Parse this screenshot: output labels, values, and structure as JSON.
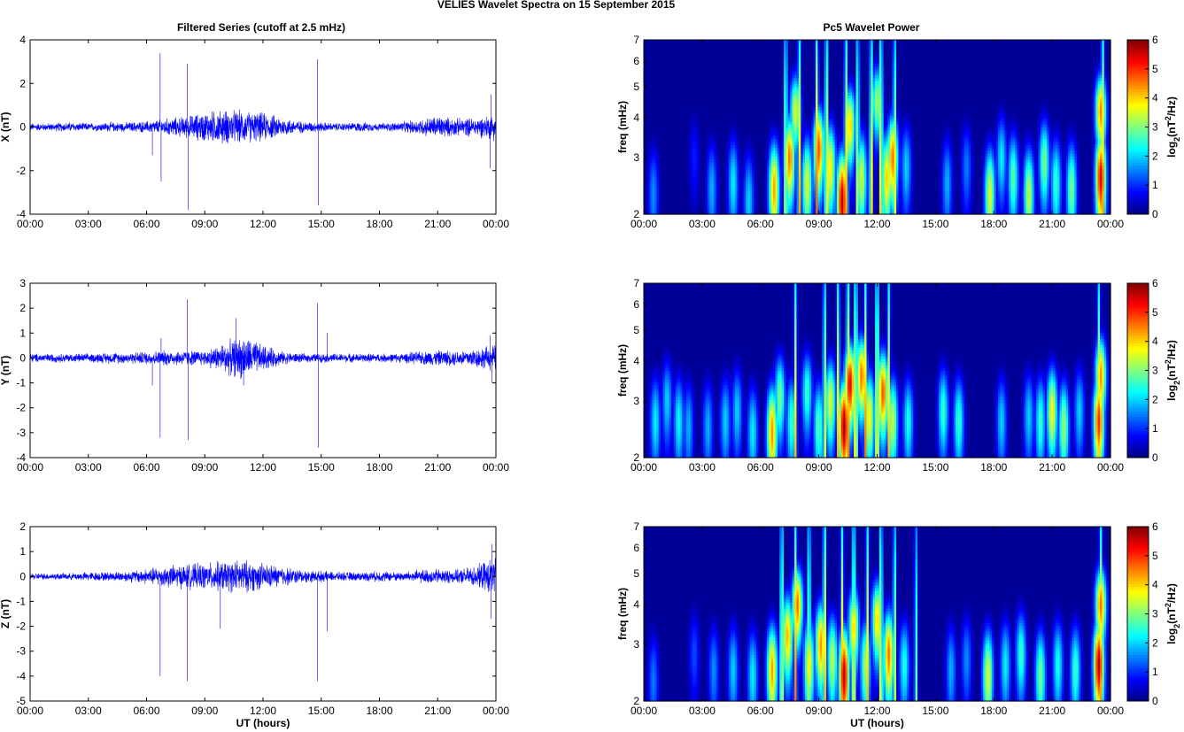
{
  "figure": {
    "title": "VELIES Wavelet Spectra on 15 September 2015",
    "left_title": "Filtered Series (cutoff at 2.5 mHz)",
    "right_title": "Pc5 Wavelet Power"
  },
  "chart_data": [
    {
      "type": "line",
      "name": "x-filtered-series",
      "xlabel": "",
      "ylabel": "X (nT)",
      "xlim": [
        0,
        24
      ],
      "ylim": [
        -4,
        4
      ],
      "xticks": [
        "00:00",
        "03:00",
        "06:00",
        "09:00",
        "12:00",
        "15:00",
        "18:00",
        "21:00",
        "00:00"
      ],
      "yticks": [
        -4,
        -2,
        0,
        2,
        4
      ],
      "color": "#0000ff",
      "grid": false,
      "spikes": [
        [
          6.7,
          3.4
        ],
        [
          6.75,
          -2.5
        ],
        [
          8.1,
          2.9
        ],
        [
          8.15,
          -3.8
        ],
        [
          14.8,
          3.1
        ],
        [
          14.85,
          -3.6
        ],
        [
          23.7,
          -1.9
        ],
        [
          23.75,
          1.5
        ],
        [
          6.3,
          -1.3
        ]
      ],
      "envelope": [
        [
          0,
          0.2
        ],
        [
          1,
          0.2
        ],
        [
          2,
          0.25
        ],
        [
          3,
          0.2
        ],
        [
          4,
          0.25
        ],
        [
          5,
          0.25
        ],
        [
          6,
          0.3
        ],
        [
          7,
          0.45
        ],
        [
          8,
          0.55
        ],
        [
          9,
          0.8
        ],
        [
          10,
          0.9
        ],
        [
          11,
          0.85
        ],
        [
          12,
          0.75
        ],
        [
          13,
          0.5
        ],
        [
          14,
          0.3
        ],
        [
          15,
          0.25
        ],
        [
          16,
          0.2
        ],
        [
          17,
          0.25
        ],
        [
          18,
          0.2
        ],
        [
          19,
          0.25
        ],
        [
          20,
          0.4
        ],
        [
          21,
          0.6
        ],
        [
          22,
          0.45
        ],
        [
          23,
          0.5
        ],
        [
          24,
          0.7
        ]
      ]
    },
    {
      "type": "line",
      "name": "y-filtered-series",
      "xlabel": "",
      "ylabel": "Y (nT)",
      "xlim": [
        0,
        24
      ],
      "ylim": [
        -4,
        3
      ],
      "xticks": [
        "00:00",
        "03:00",
        "06:00",
        "09:00",
        "12:00",
        "15:00",
        "18:00",
        "21:00",
        "00:00"
      ],
      "yticks": [
        -4,
        -3,
        -2,
        -1,
        0,
        1,
        2,
        3
      ],
      "color": "#0000ff",
      "grid": false,
      "spikes": [
        [
          6.7,
          -3.2
        ],
        [
          6.75,
          0.8
        ],
        [
          8.1,
          2.35
        ],
        [
          8.15,
          -3.3
        ],
        [
          10.6,
          1.6
        ],
        [
          11.0,
          -1.1
        ],
        [
          14.8,
          2.2
        ],
        [
          14.85,
          -3.6
        ],
        [
          15.3,
          1.0
        ],
        [
          23.8,
          -1.0
        ],
        [
          23.7,
          0.9
        ],
        [
          6.3,
          -1.1
        ]
      ],
      "envelope": [
        [
          0,
          0.2
        ],
        [
          1,
          0.2
        ],
        [
          2,
          0.2
        ],
        [
          3,
          0.2
        ],
        [
          4,
          0.25
        ],
        [
          5,
          0.25
        ],
        [
          6,
          0.3
        ],
        [
          7,
          0.35
        ],
        [
          8,
          0.35
        ],
        [
          9,
          0.35
        ],
        [
          10,
          0.7
        ],
        [
          11,
          1.0
        ],
        [
          12,
          0.6
        ],
        [
          13,
          0.3
        ],
        [
          14,
          0.2
        ],
        [
          15,
          0.2
        ],
        [
          16,
          0.2
        ],
        [
          17,
          0.2
        ],
        [
          18,
          0.2
        ],
        [
          19,
          0.2
        ],
        [
          20,
          0.3
        ],
        [
          21,
          0.35
        ],
        [
          22,
          0.35
        ],
        [
          23,
          0.45
        ],
        [
          24,
          0.6
        ]
      ]
    },
    {
      "type": "line",
      "name": "z-filtered-series",
      "xlabel": "UT (hours)",
      "ylabel": "Z (nT)",
      "xlim": [
        0,
        24
      ],
      "ylim": [
        -5,
        2
      ],
      "xticks": [
        "00:00",
        "03:00",
        "06:00",
        "09:00",
        "12:00",
        "15:00",
        "18:00",
        "21:00",
        "00:00"
      ],
      "yticks": [
        -5,
        -4,
        -3,
        -2,
        -1,
        0,
        1,
        2
      ],
      "color": "#0000ff",
      "grid": false,
      "spikes": [
        [
          6.7,
          -4.0
        ],
        [
          8.1,
          -4.2
        ],
        [
          9.8,
          -2.1
        ],
        [
          14.8,
          -4.2
        ],
        [
          15.3,
          -2.2
        ],
        [
          23.8,
          1.3
        ],
        [
          23.75,
          -1.7
        ]
      ],
      "envelope": [
        [
          0,
          0.15
        ],
        [
          1,
          0.15
        ],
        [
          2,
          0.15
        ],
        [
          3,
          0.2
        ],
        [
          4,
          0.2
        ],
        [
          5,
          0.25
        ],
        [
          6,
          0.35
        ],
        [
          7,
          0.5
        ],
        [
          8,
          0.55
        ],
        [
          9,
          0.6
        ],
        [
          10,
          0.7
        ],
        [
          11,
          0.75
        ],
        [
          12,
          0.6
        ],
        [
          13,
          0.45
        ],
        [
          14,
          0.3
        ],
        [
          15,
          0.25
        ],
        [
          16,
          0.2
        ],
        [
          17,
          0.2
        ],
        [
          18,
          0.25
        ],
        [
          19,
          0.2
        ],
        [
          20,
          0.3
        ],
        [
          21,
          0.35
        ],
        [
          22,
          0.3
        ],
        [
          23,
          0.5
        ],
        [
          24,
          0.9
        ]
      ]
    },
    {
      "type": "heatmap",
      "name": "x-wavelet-power",
      "xlabel": "",
      "ylabel": "freq (mHz)",
      "xlim": [
        0,
        24
      ],
      "ylim": [
        2,
        7
      ],
      "yscale": "log",
      "xticks": [
        "00:00",
        "03:00",
        "06:00",
        "09:00",
        "12:00",
        "15:00",
        "18:00",
        "21:00",
        "00:00"
      ],
      "yticks": [
        2,
        3,
        4,
        5,
        6,
        7
      ],
      "colorbar_label": "log2(nT2/Hz)",
      "colorbar_ticks": [
        0,
        1,
        2,
        3,
        4,
        5,
        6
      ],
      "clim": [
        0,
        6
      ],
      "colormap": "jet",
      "peaks": [
        [
          0.5,
          2.3,
          1.6
        ],
        [
          2.6,
          3.0,
          0.9
        ],
        [
          3.5,
          2.4,
          1.8
        ],
        [
          4.6,
          2.5,
          2.2
        ],
        [
          5.4,
          2.2,
          2.0
        ],
        [
          6.7,
          2.4,
          4.3
        ],
        [
          7.5,
          3.0,
          4.6
        ],
        [
          7.8,
          4.2,
          3.6
        ],
        [
          8.4,
          2.5,
          3.6
        ],
        [
          9.0,
          3.2,
          4.8
        ],
        [
          9.6,
          2.8,
          3.8
        ],
        [
          10.2,
          2.2,
          5.6
        ],
        [
          10.6,
          3.8,
          4.0
        ],
        [
          11.2,
          2.6,
          3.5
        ],
        [
          12.0,
          4.5,
          3.2
        ],
        [
          12.5,
          2.6,
          4.0
        ],
        [
          12.8,
          3.0,
          4.6
        ],
        [
          13.5,
          2.8,
          2.0
        ],
        [
          15.6,
          2.5,
          1.8
        ],
        [
          16.6,
          2.8,
          1.5
        ],
        [
          17.8,
          2.3,
          3.6
        ],
        [
          18.4,
          3.0,
          2.2
        ],
        [
          19.0,
          2.6,
          2.8
        ],
        [
          19.8,
          2.3,
          3.4
        ],
        [
          20.6,
          2.9,
          3.0
        ],
        [
          21.2,
          2.5,
          2.6
        ],
        [
          22.0,
          2.4,
          3.0
        ],
        [
          23.5,
          2.6,
          5.4
        ],
        [
          23.5,
          4.2,
          4.5
        ]
      ],
      "streaks": [
        [
          7.3,
          4.0
        ],
        [
          8.0,
          4.5
        ],
        [
          8.9,
          4.8
        ],
        [
          9.4,
          4.6
        ],
        [
          10.4,
          4.5
        ],
        [
          11.0,
          4.0
        ],
        [
          11.7,
          4.4
        ],
        [
          12.2,
          4.7
        ],
        [
          12.9,
          4.0
        ],
        [
          23.6,
          4.5
        ]
      ]
    },
    {
      "type": "heatmap",
      "name": "y-wavelet-power",
      "xlabel": "",
      "ylabel": "freq (mHz)",
      "xlim": [
        0,
        24
      ],
      "ylim": [
        2,
        7
      ],
      "yscale": "log",
      "xticks": [
        "00:00",
        "03:00",
        "06:00",
        "09:00",
        "12:00",
        "15:00",
        "18:00",
        "21:00",
        "00:00"
      ],
      "yticks": [
        2,
        3,
        4,
        5,
        6,
        7
      ],
      "colorbar_label": "log2(nT2/Hz)",
      "colorbar_ticks": [
        0,
        1,
        2,
        3,
        4,
        5,
        6
      ],
      "clim": [
        0,
        6
      ],
      "colormap": "jet",
      "peaks": [
        [
          0.6,
          2.6,
          2.2
        ],
        [
          1.2,
          3.0,
          2.0
        ],
        [
          1.8,
          2.6,
          2.3
        ],
        [
          2.3,
          2.5,
          1.8
        ],
        [
          3.3,
          2.5,
          1.8
        ],
        [
          4.2,
          2.6,
          2.0
        ],
        [
          4.8,
          2.8,
          2.0
        ],
        [
          5.6,
          2.4,
          2.2
        ],
        [
          6.6,
          2.4,
          4.4
        ],
        [
          7.0,
          3.1,
          3.0
        ],
        [
          7.6,
          2.6,
          2.6
        ],
        [
          8.4,
          3.2,
          2.6
        ],
        [
          9.0,
          2.5,
          2.8
        ],
        [
          9.6,
          3.0,
          3.6
        ],
        [
          10.3,
          2.5,
          5.8
        ],
        [
          10.6,
          3.4,
          5.4
        ],
        [
          11.2,
          3.6,
          4.6
        ],
        [
          11.6,
          2.7,
          3.8
        ],
        [
          12.3,
          3.2,
          4.8
        ],
        [
          12.8,
          2.6,
          3.4
        ],
        [
          13.6,
          2.6,
          2.4
        ],
        [
          15.4,
          2.8,
          2.6
        ],
        [
          16.2,
          2.6,
          2.6
        ],
        [
          18.4,
          2.6,
          2.0
        ],
        [
          19.8,
          2.7,
          2.0
        ],
        [
          20.4,
          2.6,
          2.6
        ],
        [
          21.0,
          2.8,
          3.8
        ],
        [
          21.6,
          2.5,
          3.2
        ],
        [
          22.4,
          2.8,
          2.0
        ],
        [
          23.4,
          2.6,
          5.0
        ],
        [
          23.5,
          3.6,
          4.4
        ]
      ],
      "streaks": [
        [
          7.8,
          4.2
        ],
        [
          9.3,
          4.0
        ],
        [
          10.0,
          4.4
        ],
        [
          10.5,
          5.0
        ],
        [
          10.9,
          4.8
        ],
        [
          11.4,
          4.6
        ],
        [
          12.0,
          4.8
        ],
        [
          12.6,
          4.2
        ],
        [
          23.4,
          4.0
        ]
      ]
    },
    {
      "type": "heatmap",
      "name": "z-wavelet-power",
      "xlabel": "UT (hours)",
      "ylabel": "freq (mHz)",
      "xlim": [
        0,
        24
      ],
      "ylim": [
        2,
        7
      ],
      "yscale": "log",
      "xticks": [
        "00:00",
        "03:00",
        "06:00",
        "09:00",
        "12:00",
        "15:00",
        "18:00",
        "21:00",
        "00:00"
      ],
      "yticks": [
        2,
        3,
        4,
        5,
        6,
        7
      ],
      "colorbar_label": "log2(nT2/Hz)",
      "colorbar_ticks": [
        0,
        1,
        2,
        3,
        4,
        5,
        6
      ],
      "clim": [
        0,
        6
      ],
      "colormap": "jet",
      "peaks": [
        [
          0.5,
          2.3,
          1.5
        ],
        [
          2.6,
          2.8,
          1.2
        ],
        [
          3.6,
          2.5,
          1.6
        ],
        [
          4.6,
          2.5,
          2.0
        ],
        [
          5.6,
          2.4,
          2.2
        ],
        [
          6.6,
          2.5,
          4.3
        ],
        [
          7.4,
          3.2,
          4.2
        ],
        [
          7.9,
          4.0,
          4.6
        ],
        [
          8.5,
          2.6,
          3.8
        ],
        [
          9.1,
          3.0,
          4.4
        ],
        [
          9.7,
          2.7,
          3.4
        ],
        [
          10.3,
          2.4,
          5.6
        ],
        [
          10.8,
          3.4,
          4.0
        ],
        [
          11.4,
          2.6,
          3.2
        ],
        [
          12.0,
          3.6,
          4.0
        ],
        [
          12.6,
          2.8,
          4.6
        ],
        [
          13.4,
          2.6,
          2.4
        ],
        [
          15.8,
          2.5,
          1.8
        ],
        [
          16.6,
          2.7,
          1.6
        ],
        [
          17.7,
          2.4,
          3.6
        ],
        [
          18.6,
          2.6,
          2.2
        ],
        [
          19.4,
          2.8,
          2.6
        ],
        [
          20.4,
          2.4,
          3.0
        ],
        [
          21.3,
          2.6,
          2.4
        ],
        [
          22.2,
          2.5,
          2.6
        ],
        [
          23.4,
          2.6,
          5.6
        ],
        [
          23.5,
          4.0,
          4.6
        ]
      ],
      "streaks": [
        [
          7.1,
          4.2
        ],
        [
          7.8,
          4.6
        ],
        [
          8.5,
          4.0
        ],
        [
          9.3,
          4.6
        ],
        [
          10.2,
          4.4
        ],
        [
          10.8,
          4.6
        ],
        [
          11.5,
          4.2
        ],
        [
          12.2,
          4.4
        ],
        [
          12.9,
          3.8
        ],
        [
          14.0,
          3.0
        ],
        [
          23.5,
          4.4
        ]
      ]
    }
  ]
}
